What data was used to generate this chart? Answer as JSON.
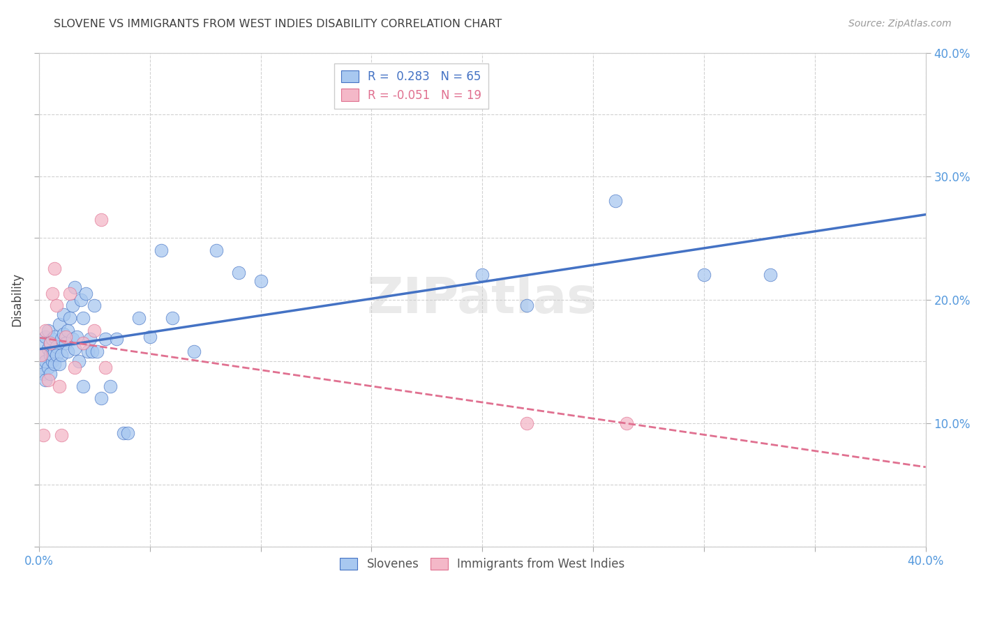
{
  "title": "SLOVENE VS IMMIGRANTS FROM WEST INDIES DISABILITY CORRELATION CHART",
  "source": "Source: ZipAtlas.com",
  "ylabel": "Disability",
  "legend_labels": [
    "Slovenes",
    "Immigrants from West Indies"
  ],
  "r_slovene": 0.283,
  "n_slovene": 65,
  "r_westindies": -0.051,
  "n_westindies": 19,
  "color_slovene": "#A8C8F0",
  "color_westindies": "#F4B8C8",
  "line_color_slovene": "#4472C4",
  "line_color_westindies": "#E07090",
  "background_color": "#ffffff",
  "grid_color": "#cccccc",
  "title_color": "#404040",
  "axis_tick_color": "#5599dd",
  "watermark": "ZIPatlas",
  "xlim": [
    0.0,
    0.4
  ],
  "ylim": [
    0.0,
    0.4
  ],
  "xticks_minor": [
    0.05,
    0.1,
    0.15,
    0.2,
    0.25,
    0.3,
    0.35
  ],
  "right_yticks": [
    0.1,
    0.2,
    0.3,
    0.4
  ],
  "slovene_x": [
    0.001,
    0.001,
    0.002,
    0.002,
    0.003,
    0.003,
    0.003,
    0.004,
    0.004,
    0.004,
    0.005,
    0.005,
    0.005,
    0.006,
    0.006,
    0.006,
    0.007,
    0.007,
    0.007,
    0.008,
    0.008,
    0.009,
    0.009,
    0.01,
    0.01,
    0.011,
    0.011,
    0.012,
    0.013,
    0.013,
    0.014,
    0.015,
    0.015,
    0.016,
    0.016,
    0.017,
    0.018,
    0.019,
    0.02,
    0.02,
    0.021,
    0.022,
    0.023,
    0.024,
    0.025,
    0.026,
    0.028,
    0.03,
    0.032,
    0.035,
    0.038,
    0.04,
    0.045,
    0.05,
    0.055,
    0.06,
    0.07,
    0.08,
    0.09,
    0.1,
    0.2,
    0.22,
    0.26,
    0.3,
    0.33
  ],
  "slovene_y": [
    0.155,
    0.145,
    0.165,
    0.14,
    0.17,
    0.15,
    0.135,
    0.16,
    0.175,
    0.145,
    0.155,
    0.165,
    0.14,
    0.15,
    0.168,
    0.155,
    0.17,
    0.158,
    0.148,
    0.162,
    0.155,
    0.18,
    0.148,
    0.168,
    0.155,
    0.172,
    0.188,
    0.165,
    0.175,
    0.158,
    0.185,
    0.168,
    0.195,
    0.16,
    0.21,
    0.17,
    0.15,
    0.2,
    0.185,
    0.13,
    0.205,
    0.158,
    0.168,
    0.158,
    0.195,
    0.158,
    0.12,
    0.168,
    0.13,
    0.168,
    0.092,
    0.092,
    0.185,
    0.17,
    0.24,
    0.185,
    0.158,
    0.24,
    0.222,
    0.215,
    0.22,
    0.195,
    0.28,
    0.22,
    0.22
  ],
  "westindies_x": [
    0.001,
    0.002,
    0.003,
    0.004,
    0.005,
    0.006,
    0.007,
    0.008,
    0.009,
    0.01,
    0.012,
    0.014,
    0.016,
    0.02,
    0.025,
    0.028,
    0.03,
    0.22,
    0.265
  ],
  "westindies_y": [
    0.155,
    0.09,
    0.175,
    0.135,
    0.165,
    0.205,
    0.225,
    0.195,
    0.13,
    0.09,
    0.17,
    0.205,
    0.145,
    0.165,
    0.175,
    0.265,
    0.145,
    0.1,
    0.1
  ]
}
